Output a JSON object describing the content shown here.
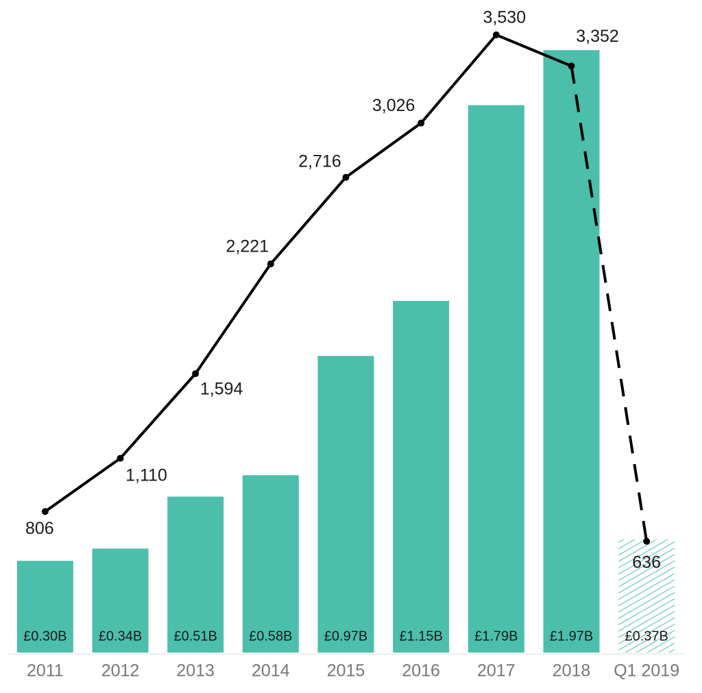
{
  "chart_data": {
    "type": "bar",
    "categories": [
      "2011",
      "2012",
      "2013",
      "2014",
      "2015",
      "2016",
      "2017",
      "2018",
      "Q1 2019"
    ],
    "partial_last": true,
    "ylim": [
      0,
      2.06
    ],
    "y2lim": [
      0,
      3600
    ],
    "series": [
      {
        "type": "bar",
        "color": "#4bbfab",
        "values": [
          0.3,
          0.34,
          0.51,
          0.58,
          0.97,
          1.15,
          1.79,
          1.97,
          0.37
        ],
        "value_labels": [
          "£0.30B",
          "£0.34B",
          "£0.51B",
          "£0.58B",
          "£0.97B",
          "£1.15B",
          "£1.79B",
          "£1.97B",
          "£0.37B"
        ]
      },
      {
        "type": "line",
        "axis": "y2",
        "color": "#000000",
        "values": [
          806,
          1110,
          1594,
          2221,
          2716,
          3026,
          3530,
          3352,
          636
        ],
        "value_labels": [
          "806",
          "1,110",
          "1,594",
          "2,221",
          "2,716",
          "3,026",
          "3,530",
          "3,352",
          "636"
        ]
      }
    ]
  }
}
